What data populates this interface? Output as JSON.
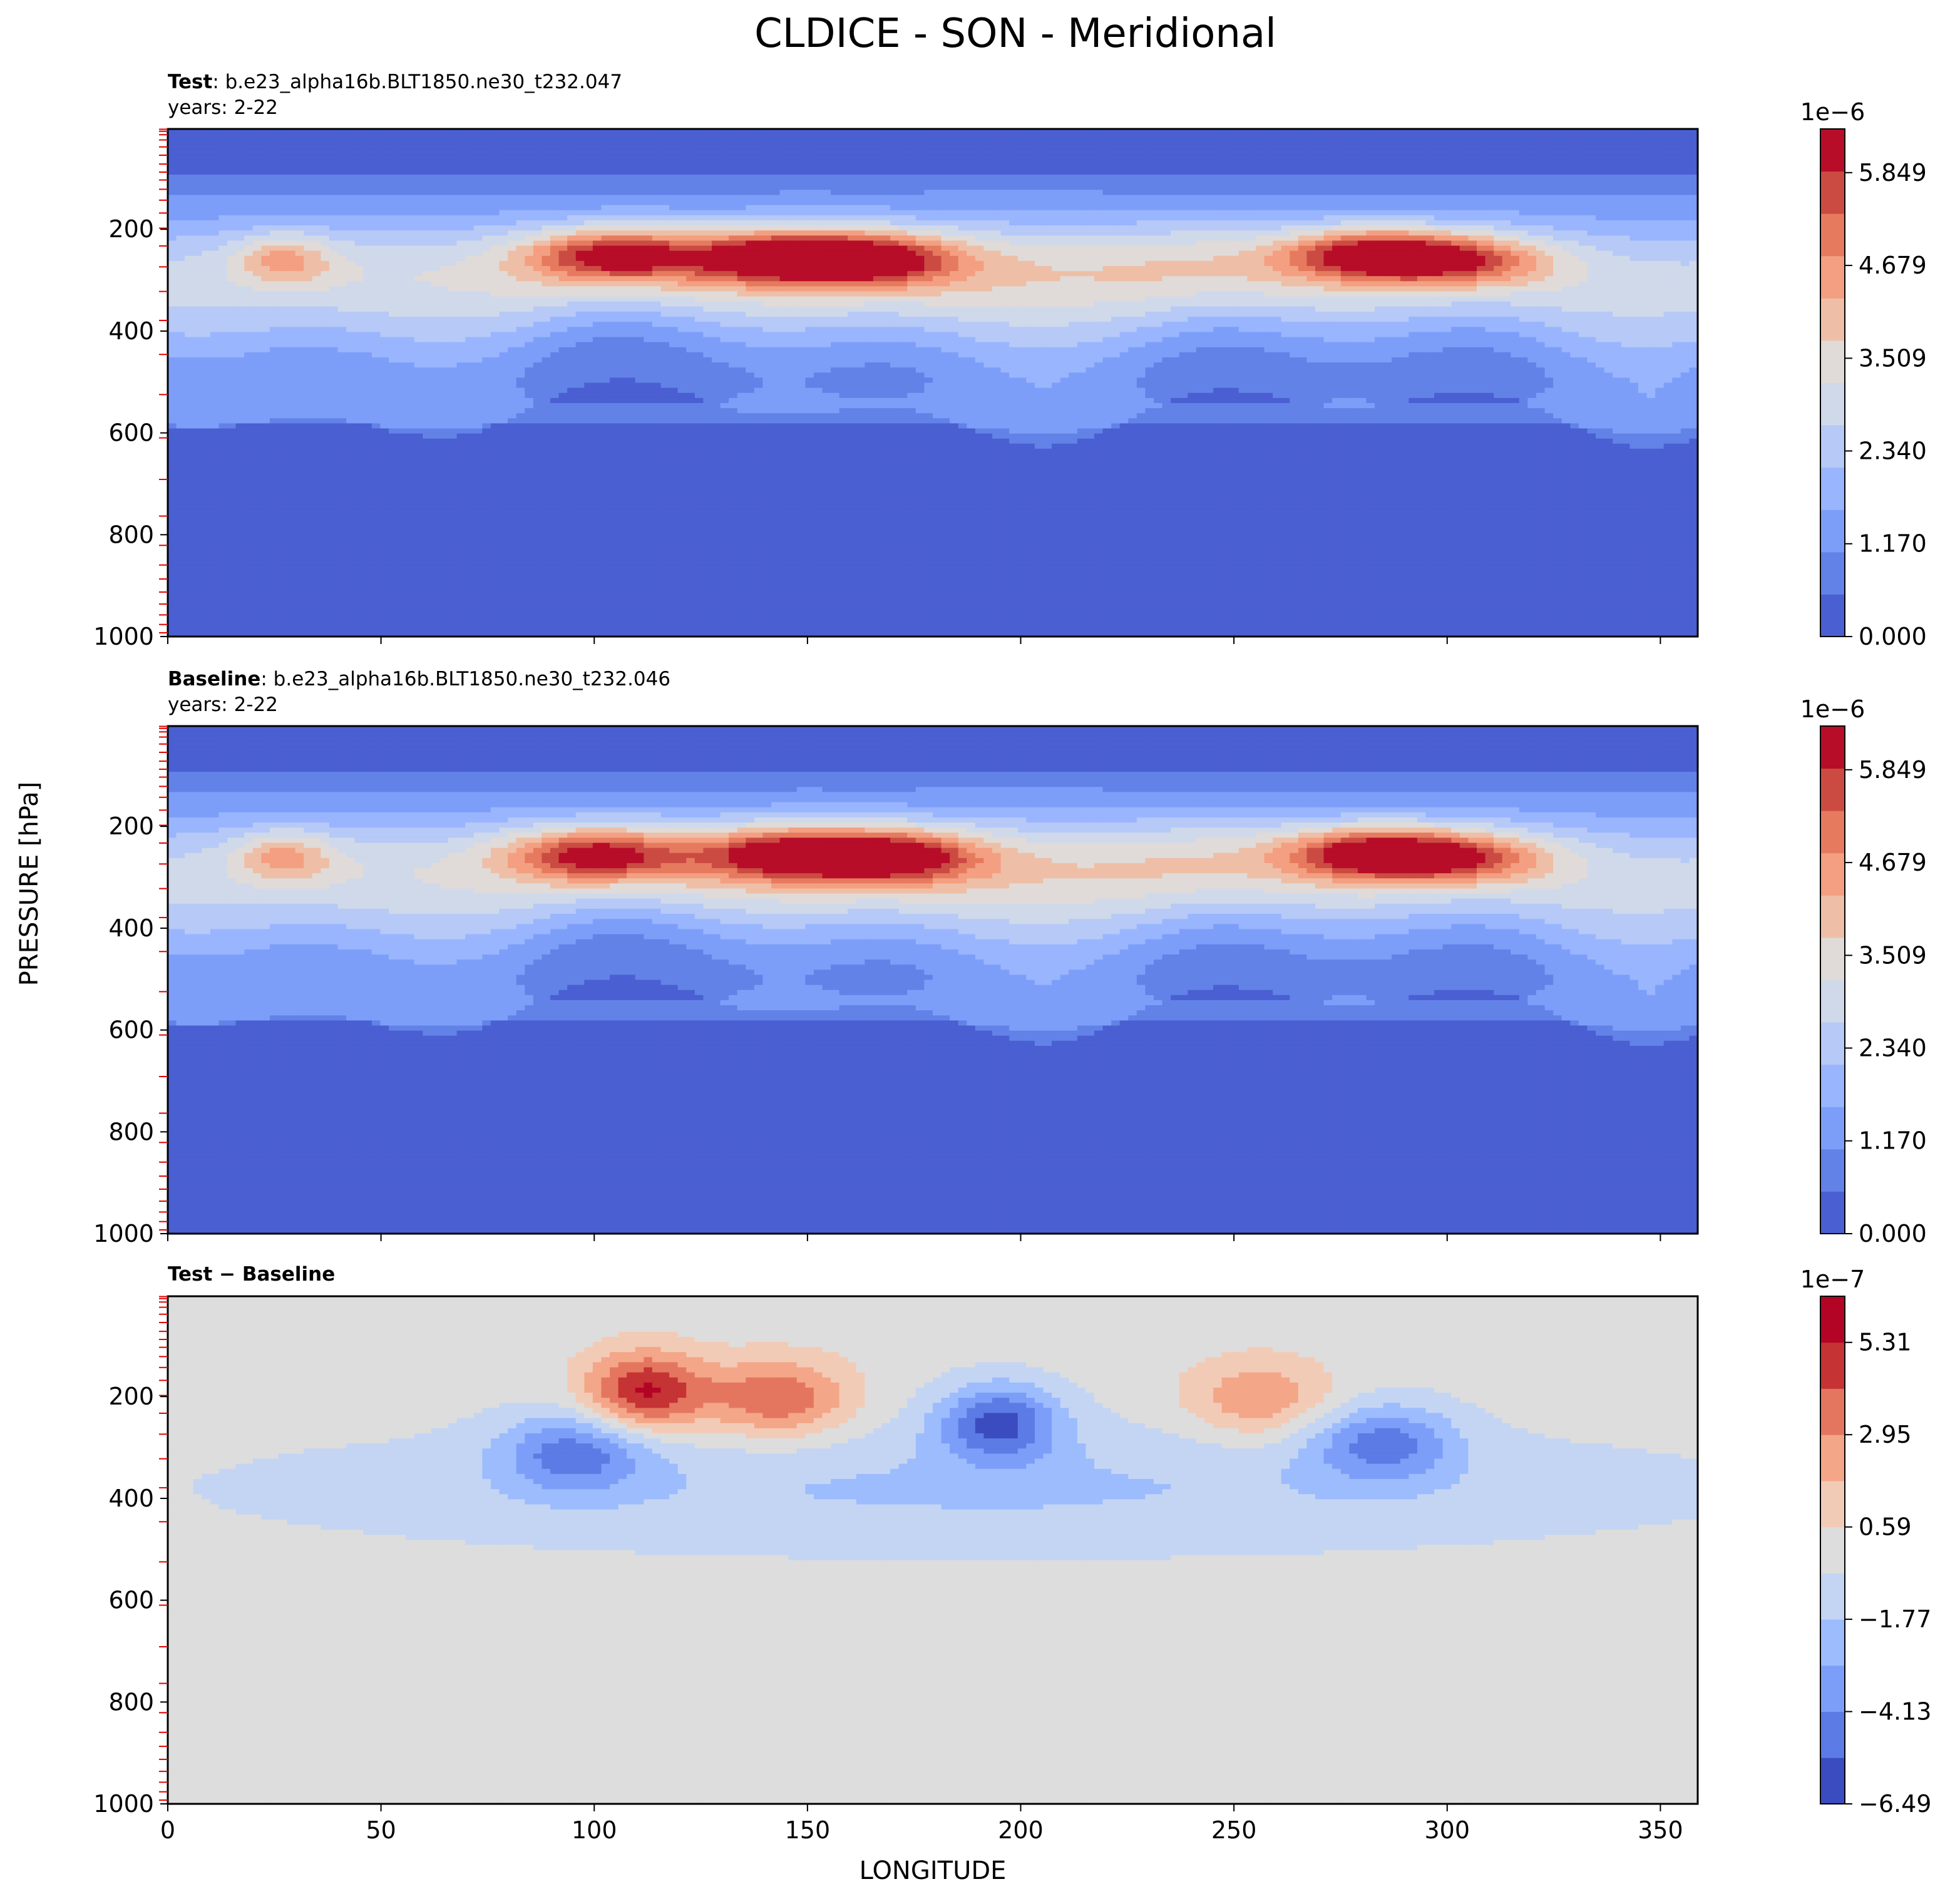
{
  "figure": {
    "title": "CLDICE - SON - Meridional",
    "ylabel": "PRESSURE [hPa]",
    "xlabel": "LONGITUDE"
  },
  "chart_data": [
    {
      "type": "contour",
      "panel": "test",
      "title_bold": "Test",
      "title_rest": ": b.e23_alpha16b.BLT1850.ne30_t232.047",
      "subtitle": "years: 2-22",
      "xlim": [
        0,
        358.75
      ],
      "ylim": [
        1000,
        3
      ],
      "y_inverted": true,
      "y_ticks": [
        200,
        400,
        600,
        800,
        1000
      ],
      "x_tick_positions": [
        0,
        50,
        100,
        150,
        200,
        250,
        300,
        350
      ],
      "model_levels_marked": true,
      "colorbar": {
        "scale_label": "1e−6",
        "ticks": [
          "0.000",
          "1.170",
          "2.340",
          "3.509",
          "4.679",
          "5.849"
        ],
        "tick_values": [
          0,
          1.17,
          2.34,
          3.509,
          4.679,
          5.849
        ],
        "vmin": 0,
        "vmax": 6.4,
        "levels": 11,
        "colors": [
          "#4a5fd1",
          "#6282e8",
          "#7d9ef8",
          "#99b5fe",
          "#b6c9f7",
          "#cfd9ea",
          "#e0dbd8",
          "#eebfa6",
          "#f49f81",
          "#e67a5f",
          "#cb4b42",
          "#b70d28"
        ]
      },
      "features": [
        {
          "lon": 27,
          "p": 258,
          "value": 4.3
        },
        {
          "lon": 105,
          "p": 250,
          "value": 5.6
        },
        {
          "lon": 143,
          "p": 253,
          "value": 6.1
        },
        {
          "lon": 165,
          "p": 258,
          "value": 5.5
        },
        {
          "lon": 283,
          "p": 250,
          "value": 6.2
        },
        {
          "lon": 305,
          "p": 262,
          "value": 4.7
        }
      ]
    },
    {
      "type": "contour",
      "panel": "baseline",
      "title_bold": "Baseline",
      "title_rest": ": b.e23_alpha16b.BLT1850.ne30_t232.046",
      "subtitle": "years: 2-22",
      "xlim": [
        0,
        358.75
      ],
      "ylim": [
        1000,
        3
      ],
      "y_inverted": true,
      "y_ticks": [
        200,
        400,
        600,
        800,
        1000
      ],
      "x_tick_positions": [
        0,
        50,
        100,
        150,
        200,
        250,
        300,
        350
      ],
      "model_levels_marked": true,
      "colorbar": {
        "scale_label": "1e−6",
        "ticks": [
          "0.000",
          "1.170",
          "2.340",
          "3.509",
          "4.679",
          "5.849"
        ],
        "tick_values": [
          0,
          1.17,
          2.34,
          3.509,
          4.679,
          5.849
        ],
        "vmin": 0,
        "vmax": 6.4,
        "levels": 11,
        "colors": [
          "#4a5fd1",
          "#6282e8",
          "#7d9ef8",
          "#99b5fe",
          "#b6c9f7",
          "#cfd9ea",
          "#e0dbd8",
          "#eebfa6",
          "#f49f81",
          "#e67a5f",
          "#cb4b42",
          "#b70d28"
        ]
      },
      "features": [
        {
          "lon": 27,
          "p": 258,
          "value": 4.3
        },
        {
          "lon": 100,
          "p": 255,
          "value": 5.5
        },
        {
          "lon": 145,
          "p": 253,
          "value": 5.8
        },
        {
          "lon": 170,
          "p": 258,
          "value": 5.7
        },
        {
          "lon": 283,
          "p": 252,
          "value": 6.2
        },
        {
          "lon": 305,
          "p": 262,
          "value": 4.7
        }
      ]
    },
    {
      "type": "contour",
      "panel": "difference",
      "title_bold": "Test − Baseline",
      "title_rest": "",
      "subtitle": "",
      "xlim": [
        0,
        358.75
      ],
      "ylim": [
        1000,
        3
      ],
      "y_inverted": true,
      "y_ticks": [
        200,
        400,
        600,
        800,
        1000
      ],
      "x_tick_positions": [
        0,
        50,
        100,
        150,
        200,
        250,
        300,
        350
      ],
      "x_tick_labels": [
        "0",
        "50",
        "100",
        "150",
        "200",
        "250",
        "300",
        "350"
      ],
      "model_levels_marked": true,
      "colorbar": {
        "scale_label": "1e−7",
        "ticks": [
          "−6.49",
          "−4.13",
          "−1.77",
          "0.59",
          "2.95",
          "5.31"
        ],
        "tick_values": [
          -6.49,
          -4.13,
          -1.77,
          0.59,
          2.95,
          5.31
        ],
        "vmin": -6.49,
        "vmax": 6.49,
        "levels": 11,
        "colors": [
          "#3b4cc0",
          "#5c7be4",
          "#7d9ef8",
          "#9cbcfd",
          "#c4d5f3",
          "#dddddd",
          "#f2cbb7",
          "#f4a688",
          "#e4765f",
          "#c53334",
          "#b40426"
        ]
      },
      "features": [
        {
          "lon": 112,
          "p": 190,
          "value": 5.6
        },
        {
          "lon": 143,
          "p": 205,
          "value": 4.2
        },
        {
          "lon": 256,
          "p": 205,
          "value": 3.0
        },
        {
          "lon": 95,
          "p": 310,
          "value": -4.0
        },
        {
          "lon": 195,
          "p": 250,
          "value": -5.2
        },
        {
          "lon": 285,
          "p": 290,
          "value": -4.0
        }
      ]
    }
  ]
}
